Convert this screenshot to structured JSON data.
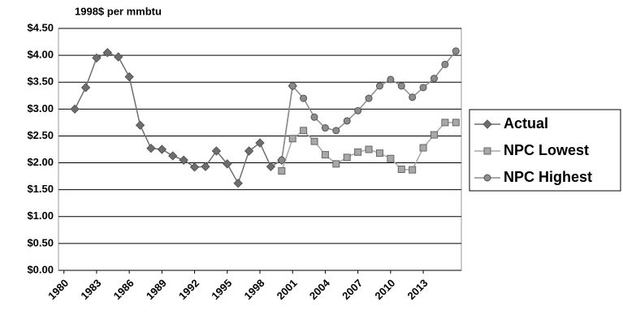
{
  "chart_data": {
    "type": "line",
    "title": "1998$ per mmbtu",
    "x": [
      1981,
      1982,
      1983,
      1984,
      1985,
      1986,
      1987,
      1988,
      1989,
      1990,
      1991,
      1992,
      1993,
      1994,
      1995,
      1996,
      1997,
      1998,
      1999,
      2000,
      2001,
      2002,
      2003,
      2004,
      2005,
      2006,
      2007,
      2008,
      2009,
      2010,
      2011,
      2012,
      2013,
      2014,
      2015,
      2016
    ],
    "series": [
      {
        "name": "Actual",
        "color": "#6e6e6e",
        "marker": "diamond",
        "values": [
          3.0,
          3.4,
          3.95,
          4.05,
          3.97,
          3.6,
          2.7,
          2.27,
          2.25,
          2.13,
          2.05,
          1.92,
          1.93,
          2.22,
          1.98,
          1.62,
          2.22,
          2.37,
          1.93,
          2.05,
          3.43,
          null,
          null,
          null,
          null,
          null,
          null,
          null,
          null,
          null,
          null,
          null,
          null,
          null,
          null,
          null
        ]
      },
      {
        "name": "NPC Lowest",
        "color": "#a8a8a8",
        "marker": "square",
        "values": [
          null,
          null,
          null,
          null,
          null,
          null,
          null,
          null,
          null,
          null,
          null,
          null,
          null,
          null,
          null,
          null,
          null,
          null,
          null,
          1.85,
          2.45,
          2.6,
          2.4,
          2.15,
          1.98,
          2.1,
          2.2,
          2.25,
          2.18,
          2.08,
          1.88,
          1.87,
          2.28,
          2.52,
          2.75,
          2.75
        ]
      },
      {
        "name": "NPC Highest",
        "color": "#8c8c8c",
        "marker": "circle",
        "values": [
          null,
          null,
          null,
          null,
          null,
          null,
          null,
          null,
          null,
          null,
          null,
          null,
          null,
          null,
          null,
          null,
          null,
          null,
          null,
          2.05,
          3.43,
          3.2,
          2.85,
          2.65,
          2.6,
          2.78,
          2.97,
          3.2,
          3.43,
          3.55,
          3.43,
          3.22,
          3.4,
          3.57,
          3.83,
          4.08
        ]
      }
    ],
    "xlim": [
      1979.5,
      2016.5
    ],
    "xticks": [
      1980,
      1983,
      1986,
      1989,
      1992,
      1995,
      1998,
      2001,
      2004,
      2007,
      2010,
      2013
    ],
    "ylim": [
      0,
      4.5
    ],
    "yticks": [
      {
        "value": 0,
        "label": "$0.00"
      },
      {
        "value": 0.5,
        "label": "$0.50"
      },
      {
        "value": 1,
        "label": "$1.00"
      },
      {
        "value": 1.5,
        "label": "$1.50"
      },
      {
        "value": 2,
        "label": "$2.00"
      },
      {
        "value": 2.5,
        "label": "$2.50"
      },
      {
        "value": 3,
        "label": "$3.00"
      },
      {
        "value": 3.5,
        "label": "$3.50"
      },
      {
        "value": 4,
        "label": "$4.00"
      },
      {
        "value": 4.5,
        "label": "$4.50"
      }
    ],
    "grid": true,
    "legend": "right"
  }
}
